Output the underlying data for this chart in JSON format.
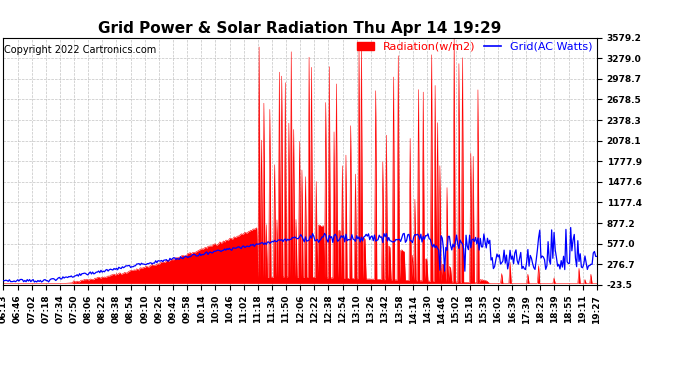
{
  "title": "Grid Power & Solar Radiation Thu Apr 14 19:29",
  "copyright": "Copyright 2022 Cartronics.com",
  "legend_radiation": "Radiation(w/m2)",
  "legend_grid": "Grid(AC Watts)",
  "ymin": -23.5,
  "ymax": 3579.2,
  "yticks": [
    3579.2,
    3279.0,
    2978.7,
    2678.5,
    2378.3,
    2078.1,
    1777.9,
    1477.6,
    1177.4,
    877.2,
    577.0,
    276.7,
    -23.5
  ],
  "xtick_labels": [
    "06:13",
    "06:46",
    "07:02",
    "07:18",
    "07:34",
    "07:50",
    "08:06",
    "08:22",
    "08:38",
    "08:54",
    "09:10",
    "09:26",
    "09:42",
    "09:58",
    "10:14",
    "10:30",
    "10:46",
    "11:02",
    "11:18",
    "11:34",
    "11:50",
    "12:06",
    "12:22",
    "12:38",
    "12:54",
    "13:10",
    "13:26",
    "13:42",
    "13:58",
    "14:14",
    "14:30",
    "14:46",
    "15:02",
    "15:18",
    "15:35",
    "16:02",
    "16:39",
    "17:39",
    "18:23",
    "18:39",
    "18:55",
    "19:11",
    "19:27"
  ],
  "background_color": "#ffffff",
  "plot_bg_color": "#ffffff",
  "grid_color": "#aaaaaa",
  "radiation_fill_color": "#ff0000",
  "grid_line_color": "#0000ff",
  "title_fontsize": 11,
  "copyright_fontsize": 7,
  "legend_fontsize": 8,
  "tick_fontsize": 6.5
}
